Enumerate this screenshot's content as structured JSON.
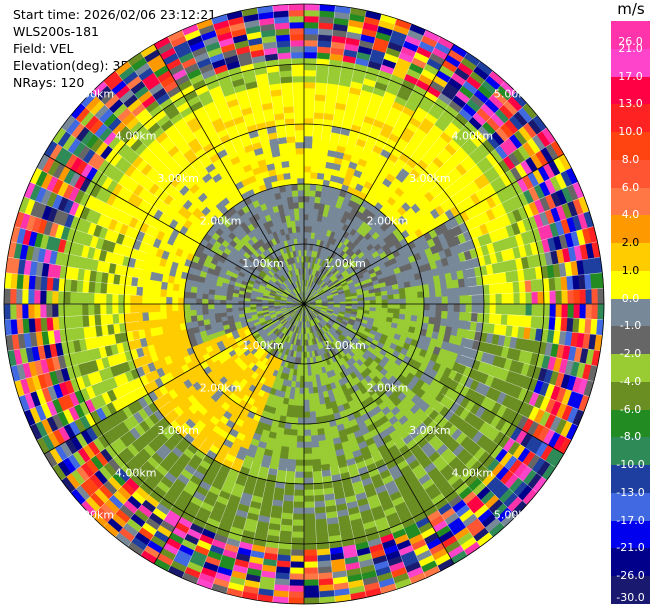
{
  "header": {
    "start_time": "Start time: 2026/02/06 23:12:21",
    "instrument": "WLS200s-181",
    "field": "Field: VEL",
    "elevation": "Elevation(deg): 35.00",
    "nrays": "NRays: 120"
  },
  "colorbar": {
    "title": "m/s",
    "ticks": [
      "26.0",
      "21.0",
      "17.0",
      "13.0",
      "10.0",
      "8.0",
      "6.0",
      "4.0",
      "2.0",
      "1.0",
      "0.0",
      "-1.0",
      "-2.0",
      "-4.0",
      "-6.0",
      "-8.0",
      "-10.0",
      "-13.0",
      "-17.0",
      "-21.0",
      "-26.0",
      "-30.0"
    ],
    "colors": [
      "#ff33aa",
      "#ff44cc",
      "#ff0044",
      "#ff2222",
      "#ff4411",
      "#ff5533",
      "#ff7744",
      "#ff9900",
      "#ffcc00",
      "#ffff00",
      "#778899",
      "#666666",
      "#99cc33",
      "#6b8e23",
      "#228b22",
      "#2e8b57",
      "#1e3fa0",
      "#4169e1",
      "#0000ee",
      "#00008b",
      "#191970"
    ]
  },
  "chart_data": {
    "type": "heatmap",
    "projection": "polar PPI",
    "field": "VEL",
    "units": "m/s",
    "n_rays": 120,
    "elevation_deg": 35.0,
    "range_ring_labels_km": [
      "1.00km",
      "2.00km",
      "3.00km",
      "4.00km",
      "5.00km"
    ],
    "value_range": [
      -30.0,
      26.0
    ],
    "description_regions": [
      {
        "range_km": [
          0,
          1.0
        ],
        "dominant_values": [
          0.0,
          -1.0,
          -2.0
        ]
      },
      {
        "range_km": [
          1.0,
          2.0
        ],
        "north_west": "approx 1.0 to 2.0",
        "south_east": "approx -1.0 to -4.0"
      },
      {
        "range_km": [
          2.0,
          4.0
        ],
        "north": "approx 1.0 to 2.0",
        "south": "approx -2.0 to -4.0"
      },
      {
        "range_km": [
          4.0,
          5.0
        ],
        "dominant_values": "noisy, mixed -30.0 to 26.0"
      }
    ]
  }
}
